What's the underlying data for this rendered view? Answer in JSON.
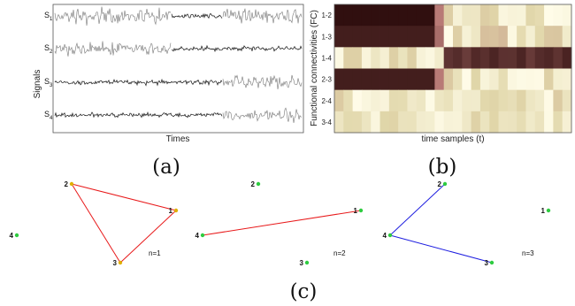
{
  "panel_a": {
    "label": "(a)",
    "ylabel": "Signals",
    "xlabel": "Times",
    "channels": [
      {
        "sub": "1",
        "active_segments": [
          [
            0.47,
            0.68
          ]
        ]
      },
      {
        "sub": "2",
        "active_segments": [
          [
            0.47,
            1.0
          ]
        ]
      },
      {
        "sub": "3",
        "active_segments": [
          [
            0.0,
            0.68
          ]
        ]
      },
      {
        "sub": "4",
        "active_segments": [
          [
            0.0,
            0.68
          ]
        ]
      }
    ],
    "channel_prefix": "S"
  },
  "panel_b": {
    "label": "(b)",
    "ylabel": "Functional connectivities (FC)",
    "xlabel": "time samples (t)",
    "rows": [
      "1-2",
      "1-3",
      "1-4",
      "2-3",
      "2-4",
      "3-4"
    ],
    "colors": {
      "strong": "#2a0a0a",
      "mid": "#b87a76",
      "weak": "#fffdf0"
    }
  },
  "panel_c": {
    "label": "(c)",
    "graphs": [
      {
        "caption": "n=1",
        "edge_color": "#e8191a",
        "nodes": [
          {
            "id": "1",
            "label": "1"
          },
          {
            "id": "2",
            "label": "2"
          },
          {
            "id": "3",
            "label": "3"
          },
          {
            "id": "4",
            "label": "4"
          }
        ],
        "edges": [
          [
            "1",
            "2"
          ],
          [
            "2",
            "3"
          ],
          [
            "3",
            "1"
          ]
        ]
      },
      {
        "caption": "n=2",
        "edge_color": "#e8191a",
        "nodes": [
          {
            "id": "1",
            "label": "1"
          },
          {
            "id": "2",
            "label": "2"
          },
          {
            "id": "3",
            "label": "3"
          },
          {
            "id": "4",
            "label": "4"
          }
        ],
        "edges": [
          [
            "4",
            "1"
          ]
        ]
      },
      {
        "caption": "n=3",
        "edge_color": "#1e1ee0",
        "nodes": [
          {
            "id": "1",
            "label": "1"
          },
          {
            "id": "2",
            "label": "2"
          },
          {
            "id": "3",
            "label": "3"
          },
          {
            "id": "4",
            "label": "4"
          }
        ],
        "edges": [
          [
            "4",
            "2"
          ],
          [
            "4",
            "3"
          ]
        ]
      }
    ],
    "node_color": "#2ecc40",
    "node_color_alt": "#e0b000"
  }
}
